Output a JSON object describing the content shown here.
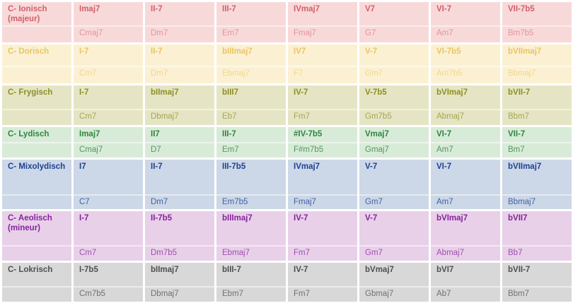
{
  "chart_data": {
    "type": "table",
    "bands": [
      {
        "label": "C- Ionisch (majeur)",
        "roman": [
          "Imaj7",
          "II-7",
          "III-7",
          "IVmaj7",
          "V7",
          "VI-7",
          "VII-7b5"
        ],
        "chords": [
          "Cmaj7",
          "Dm7",
          "Em7",
          "Fmaj7",
          "G7",
          "Am7",
          "Bm7b5"
        ],
        "colors": {
          "bg": "#f8d9da",
          "text": "#d2606a",
          "chord_text": "#e2949c"
        }
      },
      {
        "label": "C- Dorisch",
        "roman": [
          "I-7",
          "II-7",
          "bIIImaj7",
          "IV7",
          "V-7",
          "VI-7b5",
          "bVIImaj7"
        ],
        "chords": [
          "Cm7",
          "Dm7",
          "Ebmaj7",
          "F7",
          "Gm7",
          "Am7b5",
          "Bbmaj7"
        ],
        "colors": {
          "bg": "#fbf1d2",
          "text": "#eac365",
          "chord_text": "#f1d68c"
        }
      },
      {
        "label": "C- Frygisch",
        "roman": [
          "I-7",
          "bIImaj7",
          "bIII7",
          "IV-7",
          "V-7b5",
          "bVImaj7",
          "bVII-7"
        ],
        "chords": [
          "Cm7",
          "Dbmaj7",
          "Eb7",
          "Fm7",
          "Gm7b5",
          "Abmaj7",
          "Bbm7"
        ],
        "colors": {
          "bg": "#e5e5c5",
          "text": "#8e8f24",
          "chord_text": "#a6a750"
        }
      },
      {
        "label": "C- Lydisch",
        "roman": [
          "Imaj7",
          "II7",
          "III-7",
          "#IV-7b5",
          "Vmaj7",
          "VI-7",
          "VII-7"
        ],
        "chords": [
          "Cmaj7",
          "D7",
          "Em7",
          "F#m7b5",
          "Gmaj7",
          "Am7",
          "Bm7"
        ],
        "colors": {
          "bg": "#d8ebd8",
          "text": "#30853f",
          "chord_text": "#51985e"
        }
      },
      {
        "label": "C- Mixolydisch",
        "roman": [
          "I7",
          "II-7",
          "III-7b5",
          "IVmaj7",
          "V-7",
          "VI-7",
          "bVIImaj7"
        ],
        "chords": [
          "C7",
          "Dm7",
          "Em7b5",
          "Fmaj7",
          "Gm7",
          "Am7",
          "Bbmaj7"
        ],
        "colors": {
          "bg": "#ccd7e7",
          "text": "#21428f",
          "chord_text": "#4162a5"
        }
      },
      {
        "label": "C- Aeolisch (mineur)",
        "roman": [
          "I-7",
          "II-7b5",
          "bIIImaj7",
          "IV-7",
          "V-7",
          "bVImaj7",
          "bVII7"
        ],
        "chords": [
          "Cm7",
          "Dm7b5",
          "Ebmaj7",
          "Fm7",
          "Gm7",
          "Abmaj7",
          "Bb7"
        ],
        "colors": {
          "bg": "#e8d0e9",
          "text": "#85249a",
          "chord_text": "#a050b0"
        }
      },
      {
        "label": "C- Lokrisch",
        "roman": [
          "I-7b5",
          "bIImaj7",
          "bIII-7",
          "IV-7",
          "bVmaj7",
          "bVI7",
          "bVII-7"
        ],
        "chords": [
          "Cm7b5",
          "Dbmaj7",
          "Ebm7",
          "Fm7",
          "Gbmaj7",
          "Ab7",
          "Bbm7"
        ],
        "colors": {
          "bg": "#d8d8d8",
          "text": "#4f4f4f",
          "chord_text": "#717171"
        }
      }
    ]
  }
}
